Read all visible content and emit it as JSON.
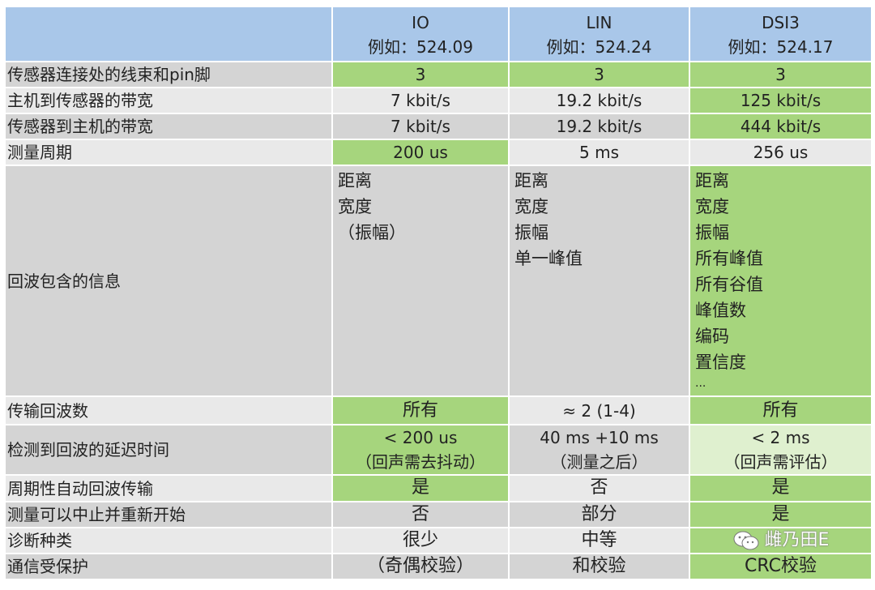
{
  "header": {
    "columns": [
      {
        "name": "IO",
        "example": "例如：524.09"
      },
      {
        "name": "LIN",
        "example": "例如：524.24"
      },
      {
        "name": "DSI3",
        "example": "例如：524.17"
      }
    ]
  },
  "rows": [
    {
      "label": "传感器连接处的线束和pin脚",
      "io": "3",
      "lin": "3",
      "dsi3": "3"
    },
    {
      "label": "主机到传感器的带宽",
      "io": "7 kbit/s",
      "lin": "19.2 kbit/s",
      "dsi3": "125 kbit/s"
    },
    {
      "label": "传感器到主机的带宽",
      "io": "7 kbit/s",
      "lin": "19.2 kbit/s",
      "dsi3": "444 kbit/s"
    },
    {
      "label": "测量周期",
      "io": "200 us",
      "lin": "5 ms",
      "dsi3": "256 us"
    },
    {
      "label": "回波包含的信息",
      "io": [
        "距离",
        "宽度",
        "（振幅）"
      ],
      "lin": [
        "距离",
        "宽度",
        "振幅",
        "单一峰值"
      ],
      "dsi3": [
        "距离",
        "宽度",
        "振幅",
        "所有峰值",
        "所有谷值",
        "峰值数",
        "编码",
        "置信度",
        "..."
      ]
    },
    {
      "label": "传输回波数",
      "io": "所有",
      "lin": "≈ 2 (1-4)",
      "dsi3": "所有"
    },
    {
      "label": "检测到回波的延迟时间",
      "io": [
        "< 200 us",
        "（回声需去抖动）"
      ],
      "lin": [
        "40 ms +10 ms",
        "（测量之后）"
      ],
      "dsi3": [
        "< 2 ms",
        "（回声需评估）"
      ]
    },
    {
      "label": "周期性自动回波传输",
      "io": "是",
      "lin": "否",
      "dsi3": "是"
    },
    {
      "label": "测量可以中止并重新开始",
      "io": "否",
      "lin": "部分",
      "dsi3": "是"
    },
    {
      "label": "诊断种类",
      "io": "很少",
      "lin": "中等",
      "dsi3": "雌乃田E"
    },
    {
      "label": "通信受保护",
      "io": "（奇偶校验）",
      "lin": "和校验",
      "dsi3": "CRC校验"
    }
  ],
  "watermark": {
    "icon": "wechat-icon",
    "text": "雌乃田E"
  },
  "colors": {
    "header": "#a9c7e9",
    "row_dark": "#d4d4d4",
    "row_light": "#e9e9e9",
    "highlight_green": "#a6d57d",
    "highlight_light_green": "#dff0cf"
  }
}
